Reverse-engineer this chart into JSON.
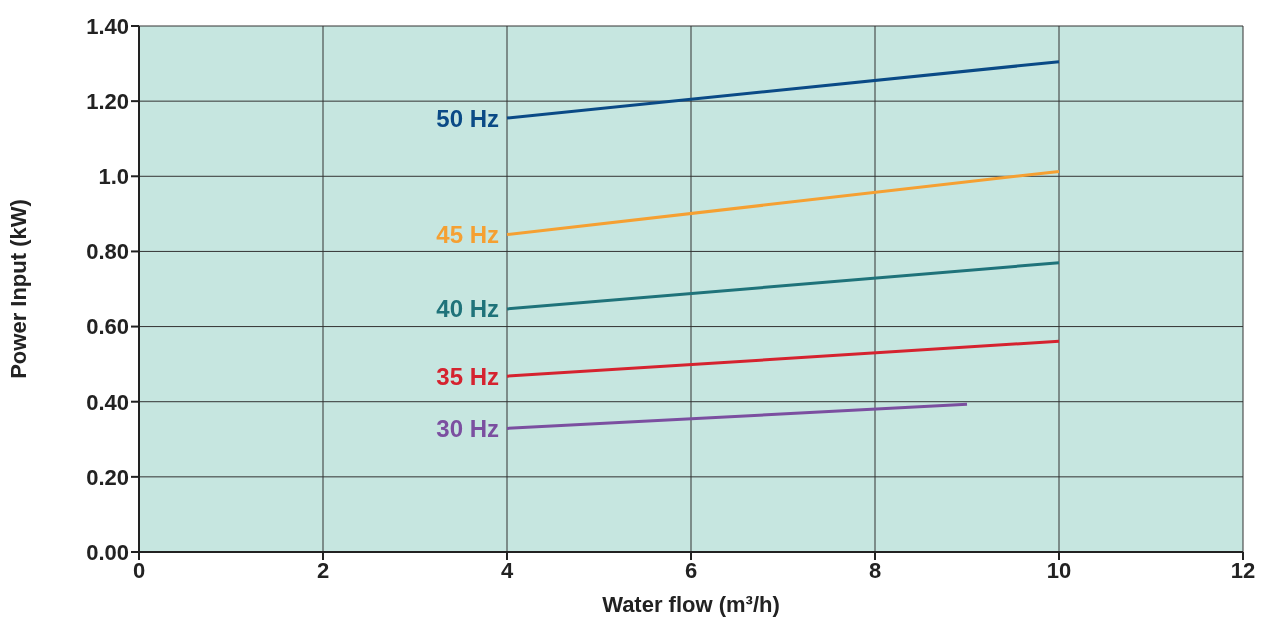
{
  "chart_data": {
    "type": "line",
    "xlabel": "Water flow  (m³/h)",
    "ylabel": "Power Input (kW)",
    "xlim": [
      0,
      12
    ],
    "xticks": [
      0,
      2,
      4,
      6,
      8,
      10,
      12
    ],
    "ylim": [
      0,
      1.4
    ],
    "yticks": [
      {
        "value": 0,
        "label": "0.00"
      },
      {
        "value": 0.2,
        "label": "0.20"
      },
      {
        "value": 0.4,
        "label": "0.40"
      },
      {
        "value": 0.6,
        "label": "0.60"
      },
      {
        "value": 0.8,
        "label": "0.80"
      },
      {
        "value": 1.0,
        "label": "1.0"
      },
      {
        "value": 1.2,
        "label": "1.20"
      },
      {
        "value": 1.4,
        "label": "1.40"
      }
    ],
    "grid": true,
    "legend": false,
    "marker": "none",
    "line_style": "solid",
    "series": [
      {
        "name": "50 Hz",
        "color": "#0a4a86",
        "x": [
          4,
          10
        ],
        "values": [
          1.155,
          1.305
        ]
      },
      {
        "name": "45 Hz",
        "color": "#f5a032",
        "x": [
          4,
          10
        ],
        "values": [
          0.845,
          1.013
        ]
      },
      {
        "name": "40 Hz",
        "color": "#1f737a",
        "x": [
          4,
          10
        ],
        "values": [
          0.647,
          0.77
        ]
      },
      {
        "name": "35 Hz",
        "color": "#d5232f",
        "x": [
          4,
          10
        ],
        "values": [
          0.468,
          0.561
        ]
      },
      {
        "name": "30 Hz",
        "color": "#7b4fa0",
        "x": [
          4,
          9
        ],
        "values": [
          0.329,
          0.393
        ]
      }
    ]
  }
}
